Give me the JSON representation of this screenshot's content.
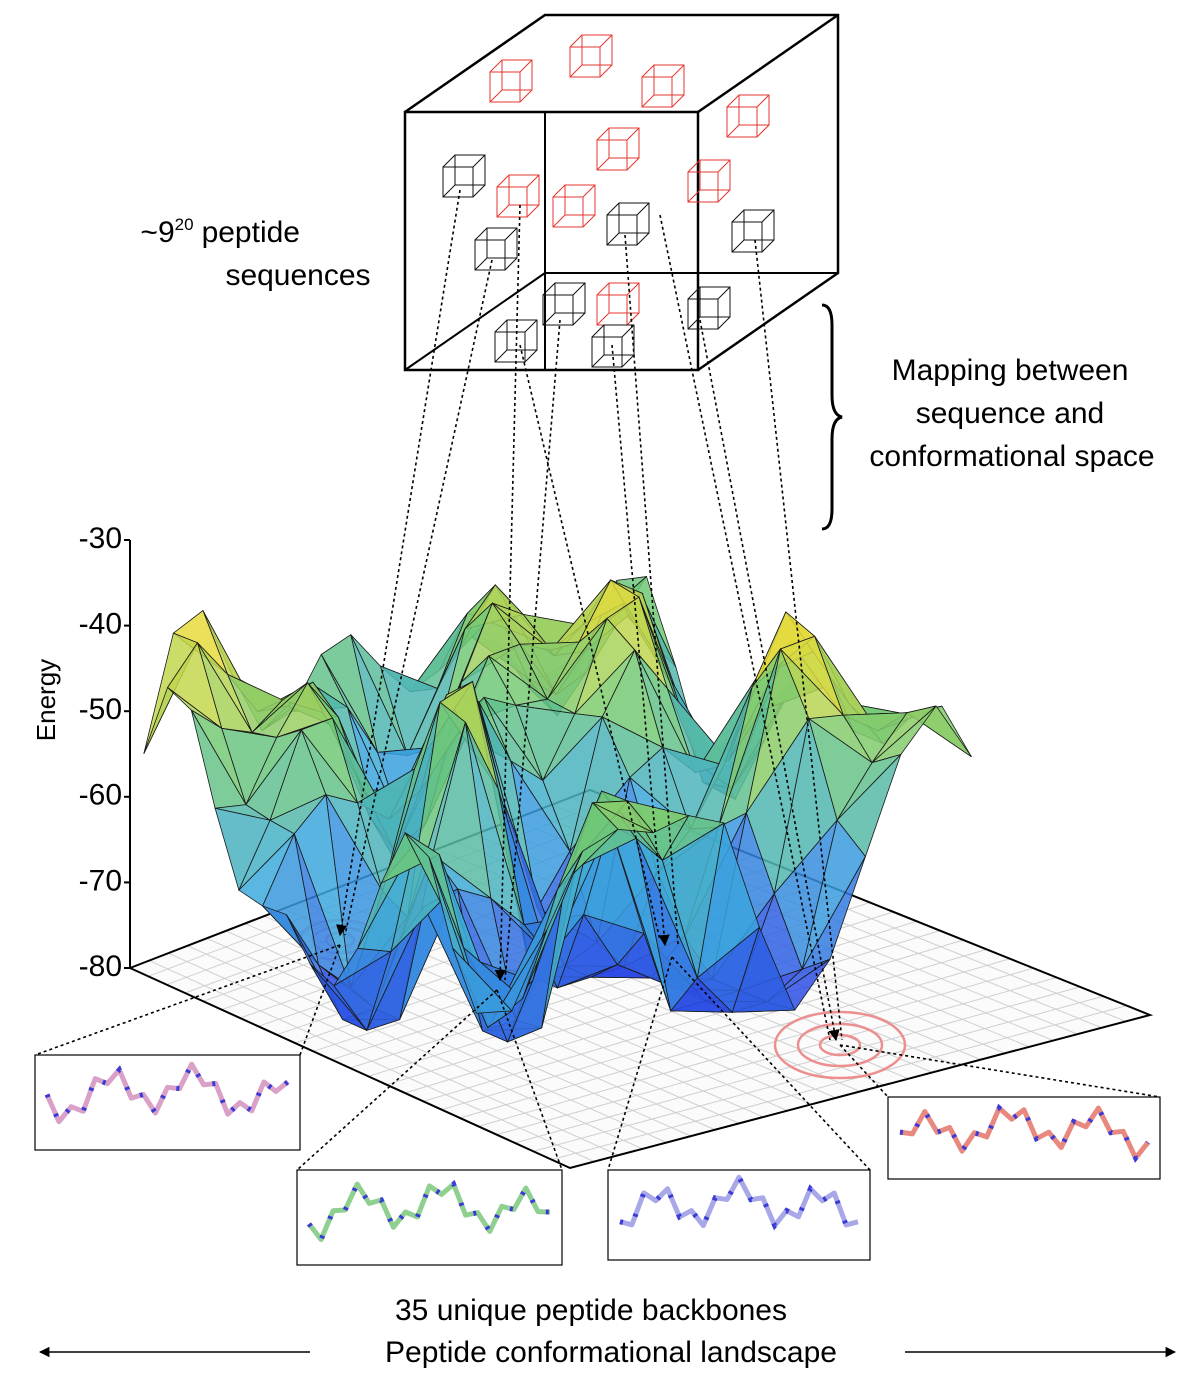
{
  "sequence_space": {
    "base": "~9",
    "exponent": "20",
    "line1_rest": "peptide",
    "line2": "sequences"
  },
  "mapping_label": [
    "Mapping between",
    "sequence and",
    "conformational space"
  ],
  "energy_axis": {
    "label": "Energy",
    "ticks": [
      -30,
      -40,
      -50,
      -60,
      -70,
      -80
    ],
    "range": [
      -80,
      -30
    ]
  },
  "footer": {
    "line1": "35 unique peptide backbones",
    "line2": "Peptide conformational landscape"
  }
}
